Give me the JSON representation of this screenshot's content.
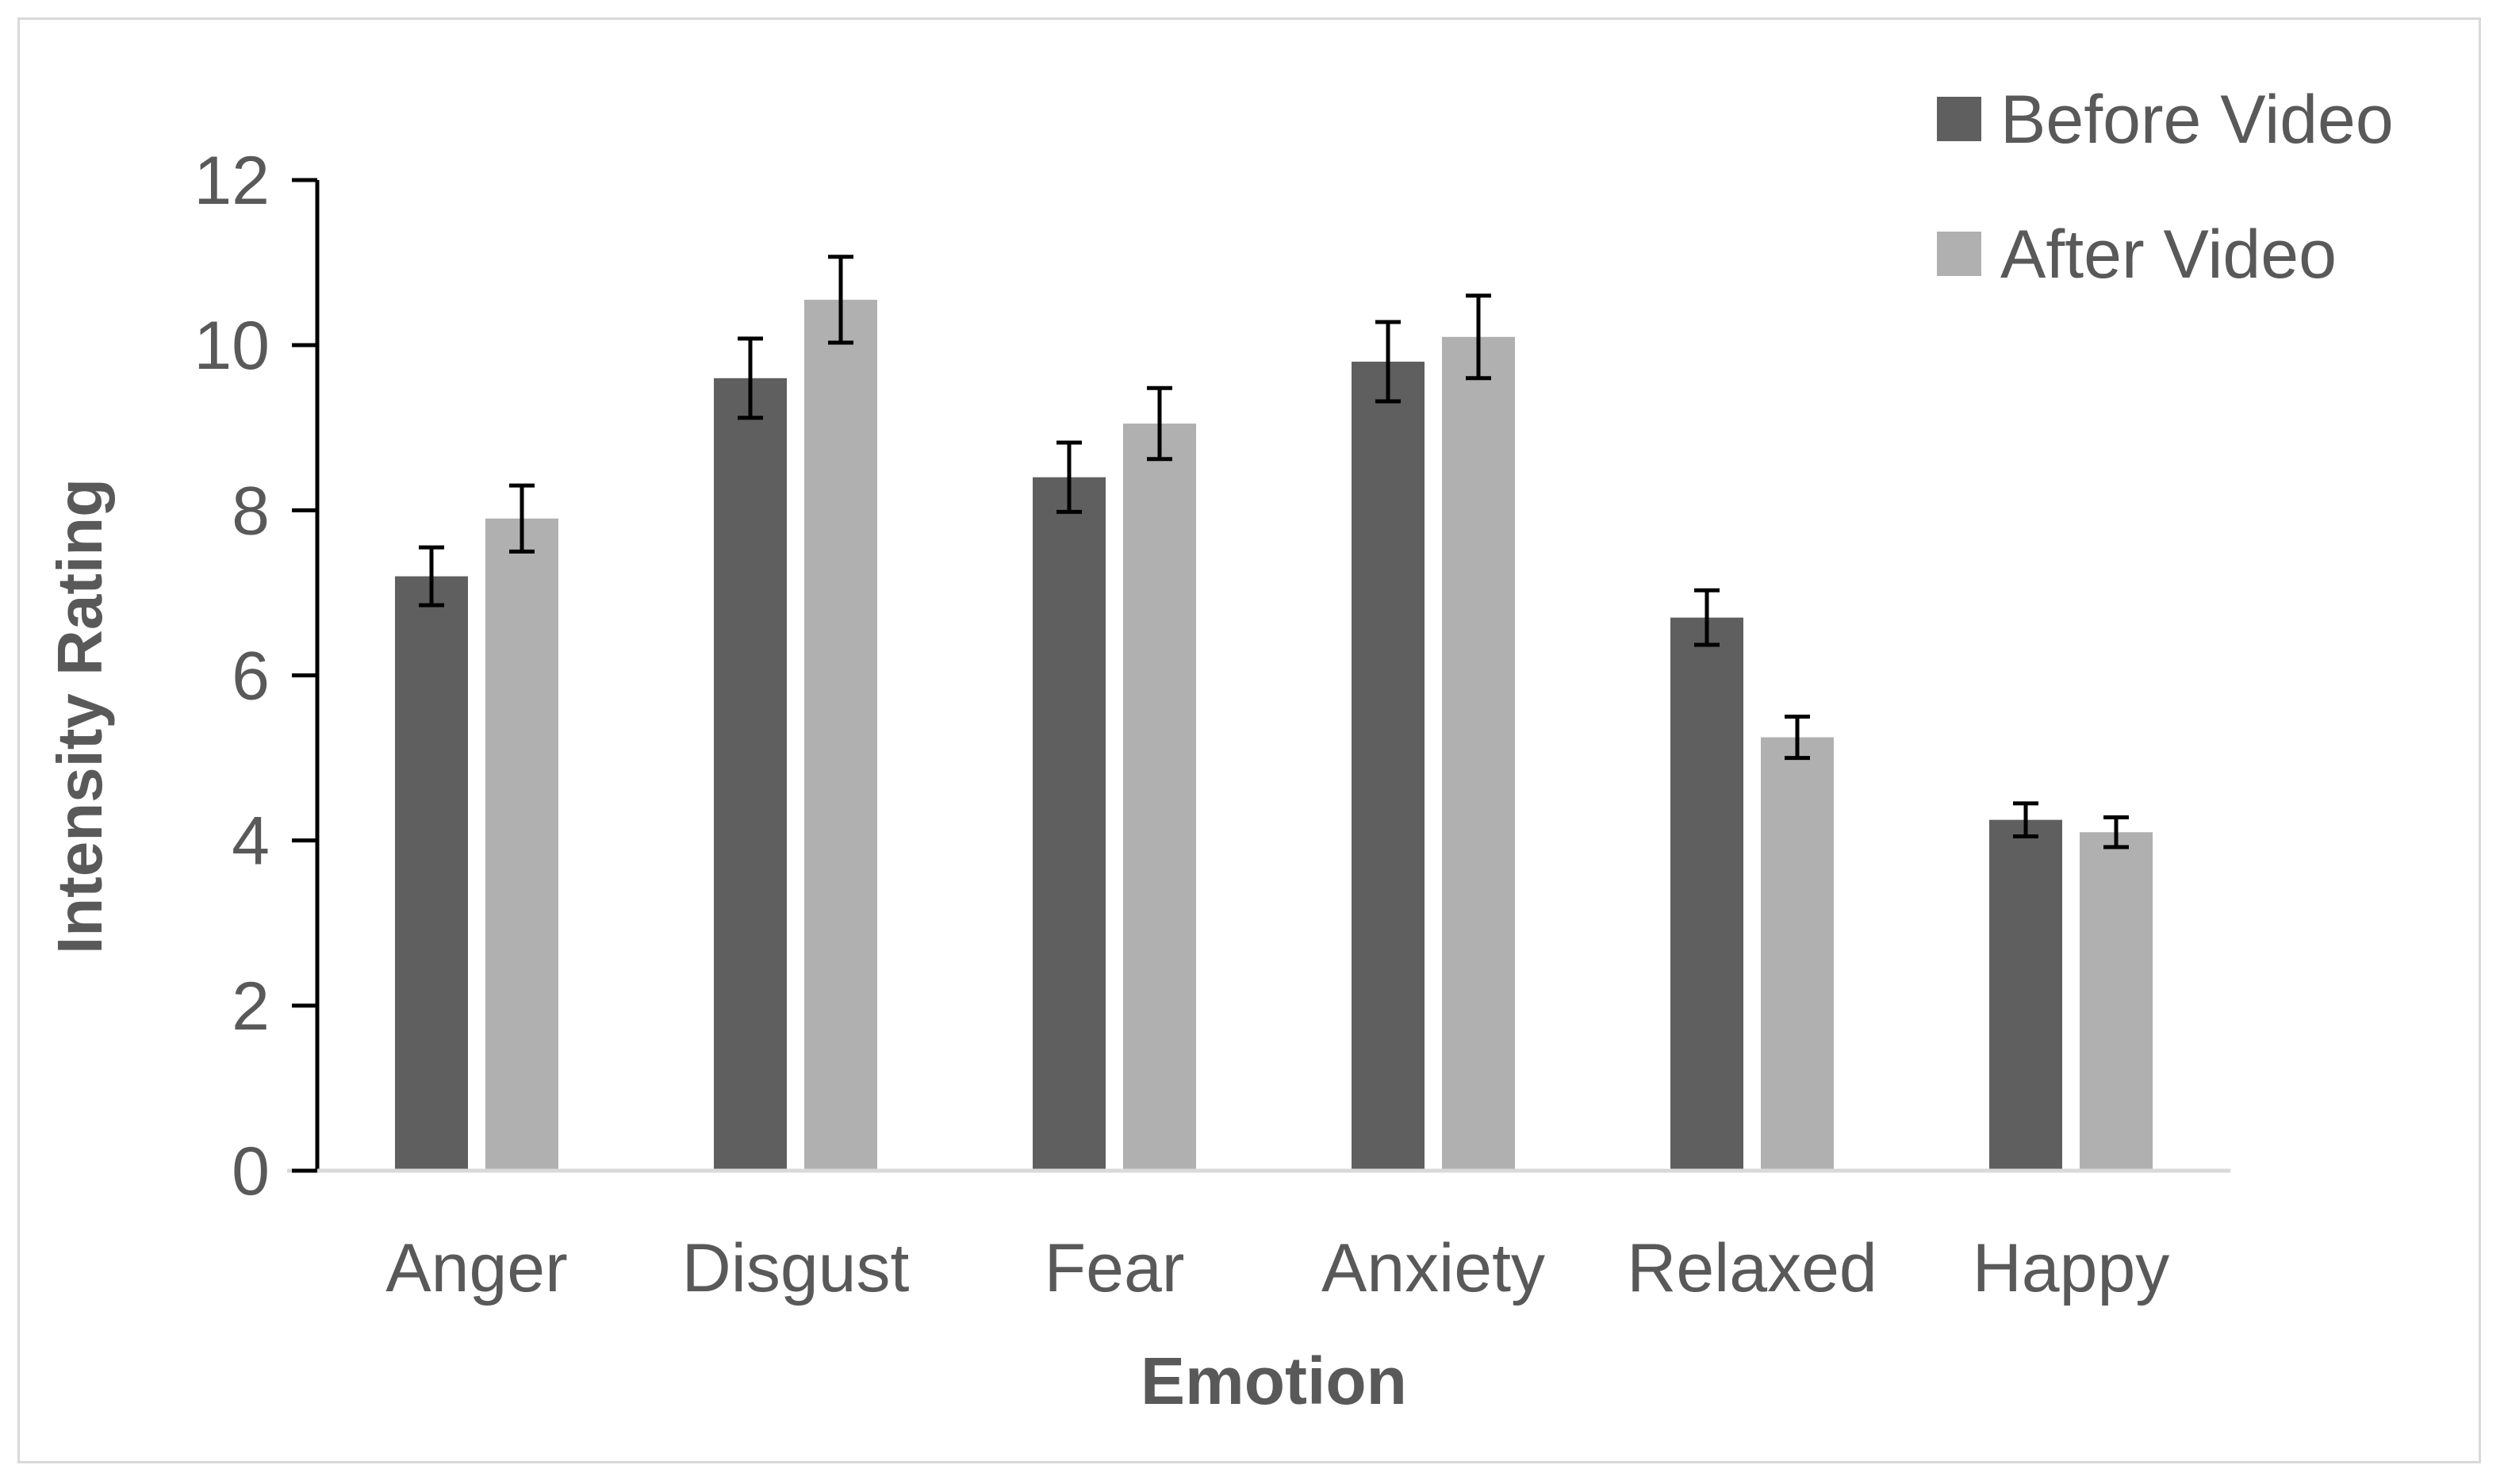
{
  "chart_data": {
    "type": "bar",
    "title": "",
    "xlabel": "Emotion",
    "ylabel": "Intensity Rating",
    "categories": [
      "Anger",
      "Disgust",
      "Fear",
      "Anxiety",
      "Relaxed",
      "Happy"
    ],
    "series": [
      {
        "name": "Before Video",
        "color": "#5f5f5f",
        "values": [
          7.2,
          9.6,
          8.4,
          9.8,
          6.7,
          4.25
        ],
        "error": [
          0.35,
          0.48,
          0.42,
          0.48,
          0.33,
          0.2
        ]
      },
      {
        "name": "After Video",
        "color": "#b0b0b0",
        "values": [
          7.9,
          10.55,
          9.05,
          10.1,
          5.25,
          4.1
        ],
        "error": [
          0.4,
          0.52,
          0.43,
          0.5,
          0.25,
          0.18
        ]
      }
    ],
    "ylim": [
      0,
      12
    ],
    "yticks": [
      0,
      2,
      4,
      6,
      8,
      10,
      12
    ],
    "legend_position": "top-right",
    "grid": false,
    "error_bars": true
  },
  "colors": {
    "axis": "#000000",
    "text": "#595959",
    "frame": "#d9d9d9"
  }
}
